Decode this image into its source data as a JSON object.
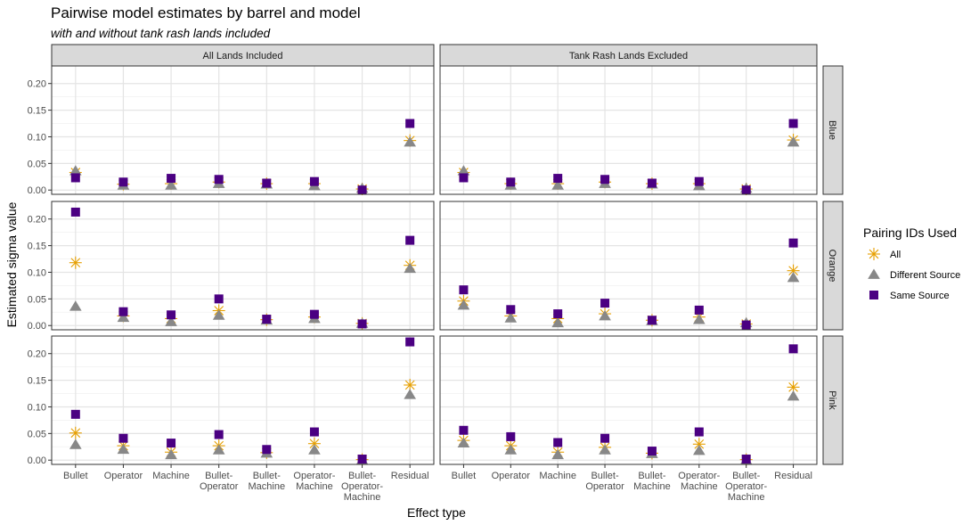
{
  "chart_data": {
    "type": "scatter",
    "title": "Pairwise model estimates by barrel and model",
    "subtitle": "with and without tank rash lands included",
    "xlabel": "Effect type",
    "ylabel": "Estimated sigma value",
    "categories": [
      "Bullet",
      "Operator",
      "Machine",
      "Bullet-\nOperator",
      "Bullet-\nMachine",
      "Operator-\nMachine",
      "Bullet-\nOperator-\nMachine",
      "Residual"
    ],
    "ylim": [
      -0.008,
      0.233
    ],
    "yticks": [
      0.0,
      0.05,
      0.1,
      0.15,
      0.2
    ],
    "ytick_labels": [
      "0.00",
      "0.05",
      "0.10",
      "0.15",
      "0.20"
    ],
    "grid": true,
    "facet_columns": [
      "All Lands Included",
      "Tank Rash Lands Excluded"
    ],
    "facet_rows": [
      "Blue",
      "Orange",
      "Pink"
    ],
    "legend": {
      "title": "Pairing IDs Used",
      "position": "right",
      "entries": [
        {
          "name": "All",
          "marker": "asterisk",
          "color": "#E69F00"
        },
        {
          "name": "Different Source",
          "marker": "triangle",
          "color": "#888888"
        },
        {
          "name": "Same Source",
          "marker": "square",
          "color": "#4B0082"
        }
      ]
    },
    "panels": [
      {
        "column": "All Lands Included",
        "row": "Blue",
        "series": [
          {
            "name": "All",
            "values": [
              0.033,
              0.011,
              0.012,
              0.015,
              0.012,
              0.012,
              0.002,
              0.093
            ]
          },
          {
            "name": "Different Source",
            "values": [
              0.036,
              0.009,
              0.009,
              0.012,
              0.011,
              0.008,
              0.003,
              0.09
            ]
          },
          {
            "name": "Same Source",
            "values": [
              0.023,
              0.015,
              0.022,
              0.02,
              0.013,
              0.016,
              0.0,
              0.125
            ]
          }
        ]
      },
      {
        "column": "Tank Rash Lands Excluded",
        "row": "Blue",
        "series": [
          {
            "name": "All",
            "values": [
              0.033,
              0.012,
              0.012,
              0.015,
              0.012,
              0.012,
              0.002,
              0.094
            ]
          },
          {
            "name": "Different Source",
            "values": [
              0.036,
              0.009,
              0.009,
              0.012,
              0.011,
              0.008,
              0.003,
              0.09
            ]
          },
          {
            "name": "Same Source",
            "values": [
              0.023,
              0.015,
              0.022,
              0.02,
              0.013,
              0.016,
              0.0,
              0.125
            ]
          }
        ]
      },
      {
        "column": "All Lands Included",
        "row": "Orange",
        "series": [
          {
            "name": "All",
            "values": [
              0.118,
              0.018,
              0.013,
              0.028,
              0.011,
              0.016,
              0.004,
              0.113
            ]
          },
          {
            "name": "Different Source",
            "values": [
              0.036,
              0.015,
              0.007,
              0.019,
              0.01,
              0.013,
              0.004,
              0.107
            ]
          },
          {
            "name": "Same Source",
            "values": [
              0.213,
              0.026,
              0.02,
              0.05,
              0.012,
              0.021,
              0.003,
              0.16
            ]
          }
        ]
      },
      {
        "column": "Tank Rash Lands Excluded",
        "row": "Orange",
        "series": [
          {
            "name": "All",
            "values": [
              0.046,
              0.018,
              0.013,
              0.022,
              0.01,
              0.016,
              0.003,
              0.103
            ]
          },
          {
            "name": "Different Source",
            "values": [
              0.038,
              0.014,
              0.005,
              0.018,
              0.009,
              0.011,
              0.005,
              0.09
            ]
          },
          {
            "name": "Same Source",
            "values": [
              0.067,
              0.03,
              0.022,
              0.042,
              0.01,
              0.029,
              0.001,
              0.155
            ]
          }
        ]
      },
      {
        "column": "All Lands Included",
        "row": "Pink",
        "series": [
          {
            "name": "All",
            "values": [
              0.051,
              0.027,
              0.015,
              0.027,
              0.014,
              0.031,
              0.001,
              0.141
            ]
          },
          {
            "name": "Different Source",
            "values": [
              0.029,
              0.02,
              0.01,
              0.019,
              0.013,
              0.019,
              0.0,
              0.123
            ]
          },
          {
            "name": "Same Source",
            "values": [
              0.086,
              0.041,
              0.032,
              0.048,
              0.02,
              0.053,
              0.002,
              0.222
            ]
          }
        ]
      },
      {
        "column": "Tank Rash Lands Excluded",
        "row": "Pink",
        "series": [
          {
            "name": "All",
            "values": [
              0.037,
              0.027,
              0.015,
              0.024,
              0.013,
              0.03,
              0.001,
              0.137
            ]
          },
          {
            "name": "Different Source",
            "values": [
              0.032,
              0.019,
              0.01,
              0.019,
              0.012,
              0.018,
              0.0,
              0.12
            ]
          },
          {
            "name": "Same Source",
            "values": [
              0.056,
              0.044,
              0.033,
              0.041,
              0.017,
              0.053,
              0.002,
              0.209
            ]
          }
        ]
      }
    ]
  }
}
